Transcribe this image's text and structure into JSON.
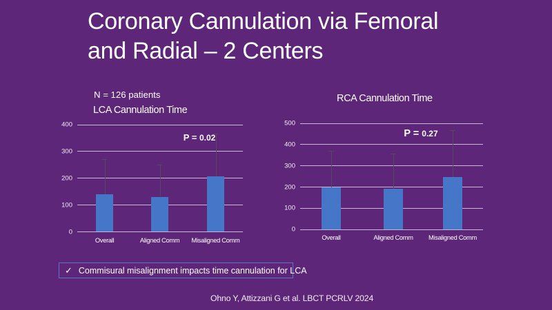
{
  "slide": {
    "background_color": "#5e2678",
    "title_line1": "Coronary Cannulation via Femoral",
    "title_line2": "and Radial – 2 Centers",
    "subtitle": "N = 126 patients",
    "callout": {
      "check_icon": "✓",
      "text": "Commisural misalignment impacts time cannulation for LCA",
      "border_color": "#5b76c8"
    },
    "citation": "Ohno Y, Attizzani G et al. LBCT PCRLV 2024"
  },
  "chart_data": [
    {
      "type": "bar",
      "title": "LCA Cannulation Time",
      "categories": [
        "Overall",
        "Aligned Comm",
        "Misaligned Comm"
      ],
      "values": [
        140,
        130,
        205
      ],
      "error_high": [
        270,
        250,
        365
      ],
      "annotation_prefix": "P = ",
      "annotation_value": "0.02",
      "ylim": [
        0,
        400
      ],
      "yticks": [
        0,
        100,
        200,
        300,
        400
      ],
      "grid": true,
      "legend": false,
      "bar_color": "#4676c8",
      "gridline_color": "#c5bbd2",
      "error_bar_color": "#55495e"
    },
    {
      "type": "bar",
      "title": "RCA Cannulation Time",
      "categories": [
        "Overall",
        "Aligned Comm",
        "Misaligned Comm"
      ],
      "values": [
        197,
        190,
        245
      ],
      "error_high": [
        370,
        355,
        465
      ],
      "annotation_prefix": "P = ",
      "annotation_value": "0.27",
      "ylim": [
        0,
        500
      ],
      "yticks": [
        0,
        100,
        200,
        300,
        400,
        500
      ],
      "grid": true,
      "legend": false,
      "bar_color": "#4676c8",
      "gridline_color": "#c5bbd2",
      "error_bar_color": "#55495e"
    }
  ]
}
